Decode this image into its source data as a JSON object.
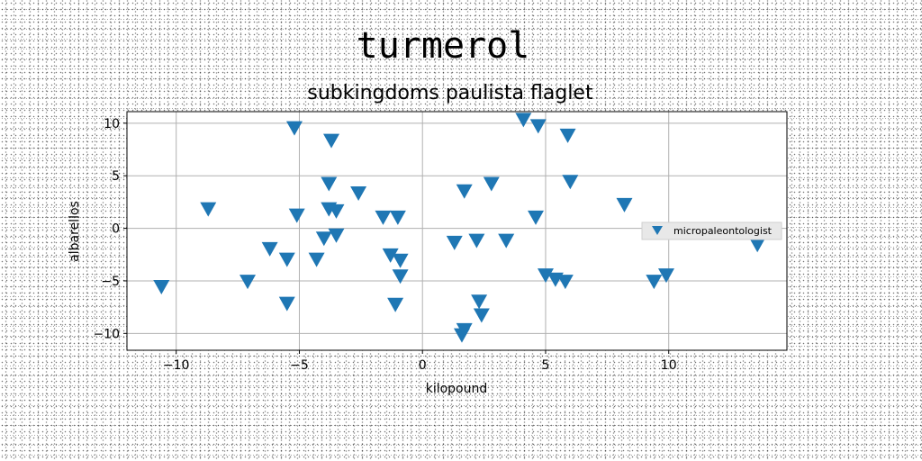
{
  "chart_data": {
    "type": "scatter",
    "title": "turmerol",
    "subtitle": "subkingdoms paulista flaglet",
    "xlabel": "kilopound",
    "ylabel": "albarellos",
    "xlim": [
      -12,
      14.8
    ],
    "ylim": [
      -11.6,
      11.1
    ],
    "xticks": [
      -10,
      -5,
      0,
      5,
      10
    ],
    "yticks": [
      -10,
      -5,
      0,
      5,
      10
    ],
    "grid": true,
    "legend_position": "center-right",
    "series": [
      {
        "name": "micropaleontologist",
        "color": "#1f77b4",
        "marker": "triangle-down",
        "points": [
          [
            -10.6,
            -5.6
          ],
          [
            -8.7,
            1.8
          ],
          [
            -7.1,
            -5.1
          ],
          [
            -6.2,
            -2.0
          ],
          [
            -5.5,
            -3.0
          ],
          [
            -5.5,
            -7.2
          ],
          [
            -5.2,
            9.5
          ],
          [
            -5.1,
            1.2
          ],
          [
            -4.3,
            -3.0
          ],
          [
            -4.0,
            -1.0
          ],
          [
            -3.8,
            4.2
          ],
          [
            -3.8,
            1.8
          ],
          [
            -3.7,
            8.3
          ],
          [
            -3.5,
            1.6
          ],
          [
            -3.5,
            -0.7
          ],
          [
            -2.6,
            3.3
          ],
          [
            -1.6,
            1.0
          ],
          [
            -1.3,
            -2.6
          ],
          [
            -1.1,
            -7.3
          ],
          [
            -1.0,
            1.0
          ],
          [
            -0.9,
            -3.1
          ],
          [
            -0.9,
            -4.6
          ],
          [
            1.3,
            -1.4
          ],
          [
            1.6,
            -10.2
          ],
          [
            1.7,
            -9.7
          ],
          [
            1.7,
            3.5
          ],
          [
            2.2,
            -1.2
          ],
          [
            2.3,
            -7.0
          ],
          [
            2.4,
            -8.3
          ],
          [
            2.8,
            4.2
          ],
          [
            3.4,
            -1.2
          ],
          [
            4.1,
            10.3
          ],
          [
            4.6,
            1.0
          ],
          [
            4.7,
            9.7
          ],
          [
            5.0,
            -4.5
          ],
          [
            5.4,
            -4.9
          ],
          [
            5.8,
            -5.1
          ],
          [
            5.9,
            8.8
          ],
          [
            6.0,
            4.4
          ],
          [
            8.2,
            2.2
          ],
          [
            9.4,
            -5.1
          ],
          [
            9.9,
            -4.5
          ],
          [
            13.6,
            -1.6
          ]
        ]
      }
    ]
  }
}
